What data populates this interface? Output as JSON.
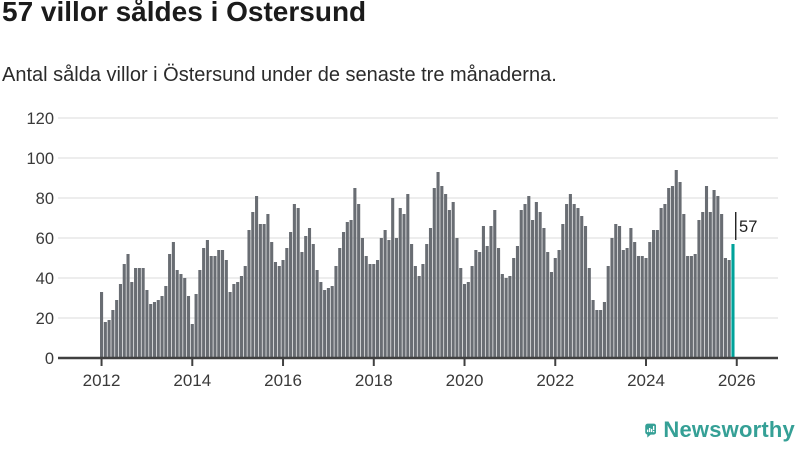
{
  "header": {
    "title": "57 villor såldes i Östersund",
    "subtitle": "Antal sålda villor i Östersund under de senaste tre månaderna."
  },
  "chart_data": {
    "type": "bar",
    "title": "57 villor såldes i Östersund",
    "subtitle": "Antal sålda villor i Östersund under de senaste tre månaderna.",
    "unit": "antal sålda villor (rullande tre månader)",
    "frequency": "monthly",
    "x_start": "2012-01",
    "x_end": "2025-12",
    "values": [
      33,
      18,
      19,
      24,
      29,
      37,
      47,
      52,
      38,
      45,
      45,
      45,
      34,
      27,
      28,
      29,
      31,
      36,
      52,
      58,
      44,
      42,
      40,
      31,
      17,
      32,
      44,
      55,
      59,
      51,
      51,
      54,
      54,
      49,
      33,
      37,
      38,
      41,
      46,
      64,
      73,
      81,
      67,
      67,
      72,
      58,
      48,
      46,
      49,
      55,
      63,
      77,
      75,
      53,
      61,
      65,
      57,
      44,
      38,
      34,
      35,
      36,
      46,
      55,
      63,
      68,
      69,
      85,
      77,
      60,
      51,
      47,
      47,
      49,
      60,
      64,
      59,
      80,
      60,
      75,
      72,
      82,
      57,
      46,
      41,
      47,
      57,
      65,
      85,
      93,
      86,
      82,
      74,
      78,
      60,
      45,
      37,
      38,
      46,
      54,
      53,
      66,
      56,
      66,
      74,
      55,
      42,
      40,
      41,
      50,
      56,
      74,
      77,
      81,
      69,
      78,
      73,
      65,
      53,
      43,
      50,
      54,
      67,
      77,
      82,
      77,
      75,
      71,
      66,
      45,
      29,
      24,
      24,
      28,
      46,
      60,
      67,
      66,
      54,
      55,
      65,
      58,
      51,
      51,
      50,
      58,
      64,
      64,
      75,
      77,
      85,
      86,
      94,
      88,
      72,
      51,
      51,
      52,
      69,
      73,
      86,
      73,
      84,
      81,
      72,
      50,
      49,
      57
    ],
    "highlight": {
      "index": 167,
      "value": 57,
      "label": "57"
    },
    "ylim": [
      0,
      120
    ],
    "yticks": [
      "0",
      "20",
      "40",
      "60",
      "80",
      "100",
      "120"
    ],
    "xtick_labels": [
      "2012",
      "2014",
      "2016",
      "2018",
      "2020",
      "2022",
      "2024",
      "2026"
    ],
    "grid": true,
    "legend": "none",
    "colors": {
      "bar": "#696d73",
      "highlight_bar": "#00a29a",
      "gridline": "#e2e2e2",
      "axis": "#404040",
      "tick_label": "#3a3a3a",
      "annotation_text": "#1f1f1f"
    }
  },
  "footer": {
    "brand": "Newsworthy",
    "brand_color": "#35a096",
    "logo_icon": "newsworthy-speech-bubble-bars-icon"
  }
}
